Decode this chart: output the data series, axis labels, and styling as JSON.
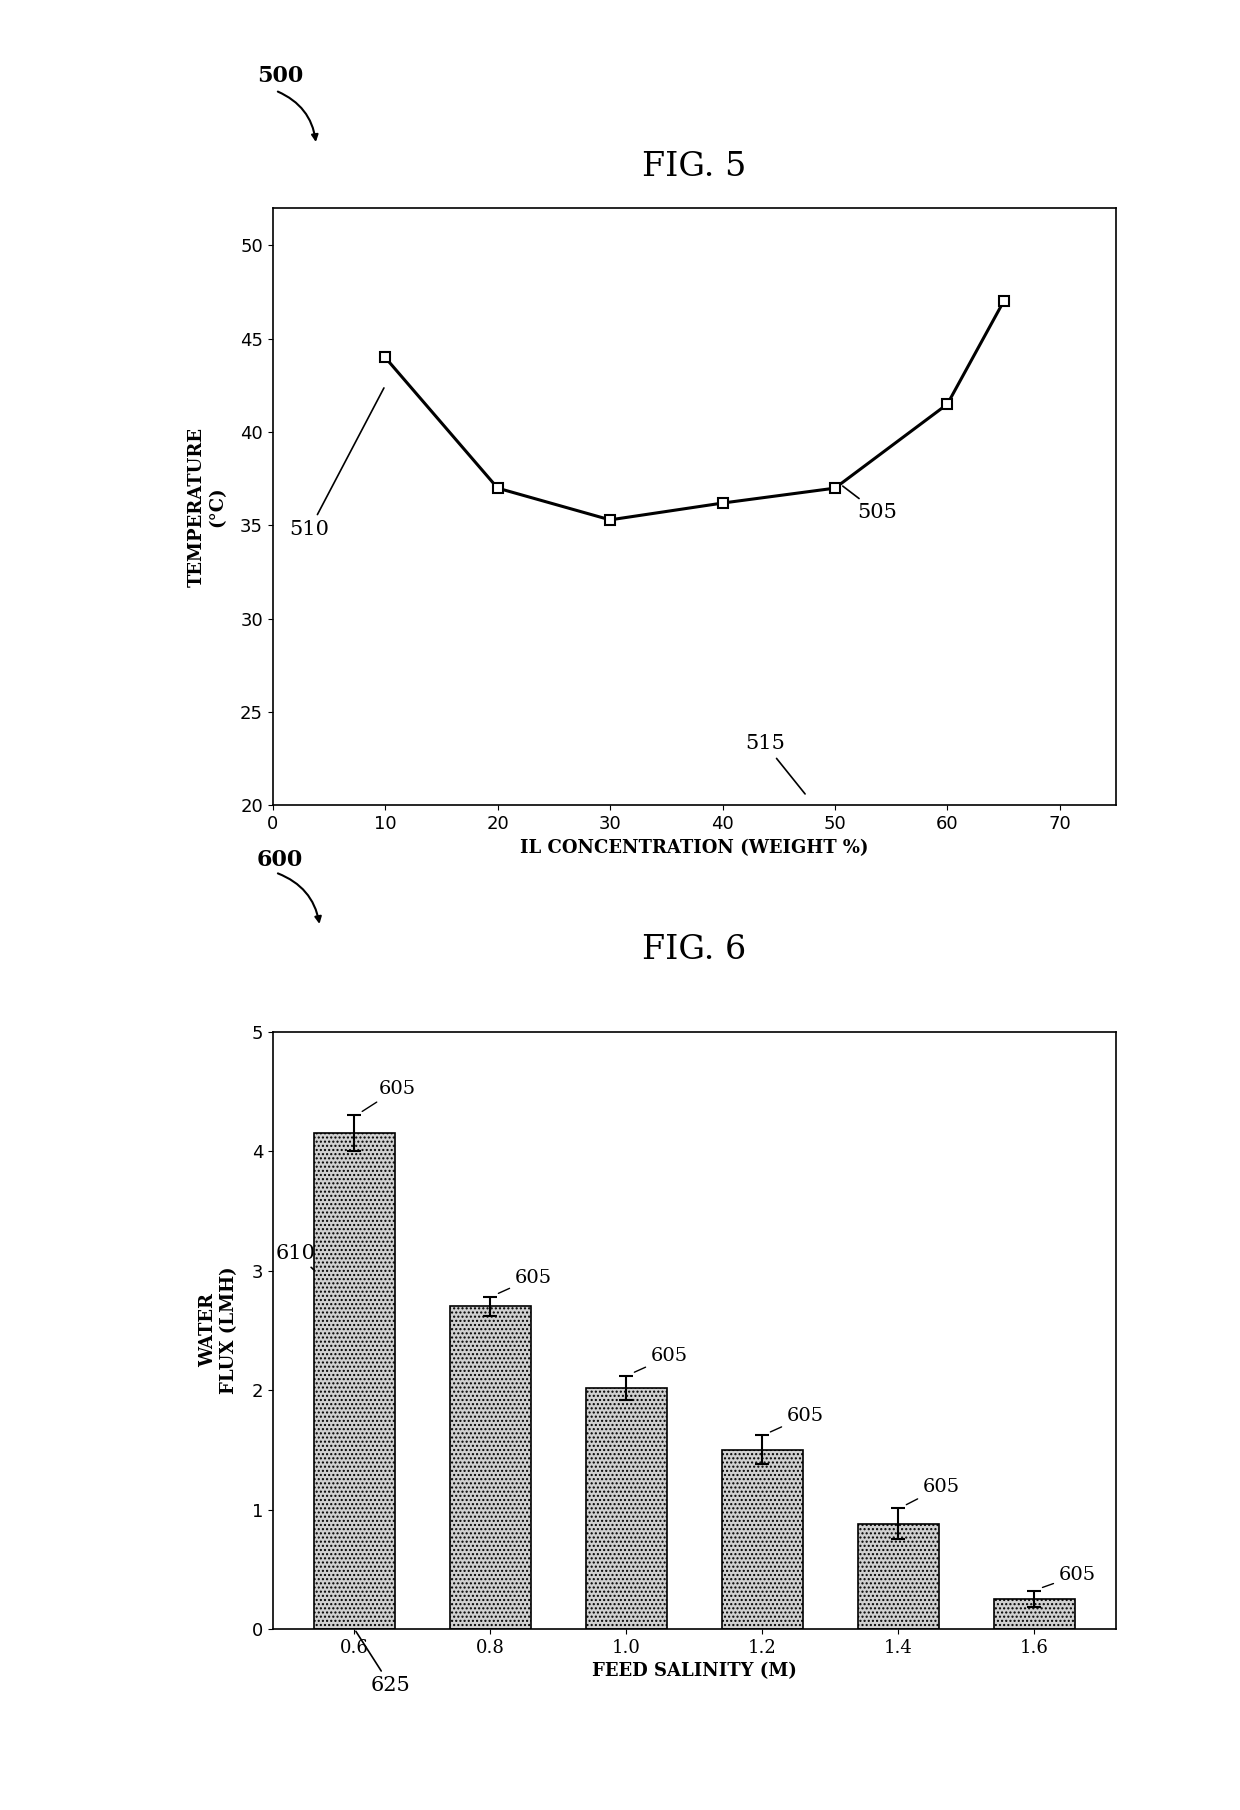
{
  "fig5": {
    "title": "FIG. 5",
    "xlabel": "IL CONCENTRATION (WEIGHT %)",
    "ylabel_line1": "TEMPERATURE",
    "ylabel_line2": "(°C)",
    "x": [
      10,
      20,
      30,
      40,
      50,
      60,
      65
    ],
    "y": [
      44.0,
      37.0,
      35.3,
      36.2,
      37.0,
      41.5,
      47.0
    ],
    "xlim": [
      0,
      75
    ],
    "ylim": [
      20,
      52
    ],
    "xticks": [
      0,
      10,
      20,
      30,
      40,
      50,
      60,
      70
    ],
    "yticks": [
      20,
      25,
      30,
      35,
      40,
      45,
      50
    ]
  },
  "fig6": {
    "title": "FIG. 6",
    "xlabel": "FEED SALINITY (M)",
    "ylabel_line1": "WATER",
    "ylabel_line2": "FLUX (LMH)",
    "categories": [
      "0.6",
      "0.8",
      "1.0",
      "1.2",
      "1.4",
      "1.6"
    ],
    "values": [
      4.15,
      2.7,
      2.02,
      1.5,
      0.88,
      0.25
    ],
    "errors": [
      0.15,
      0.08,
      0.1,
      0.12,
      0.13,
      0.07
    ],
    "ylim": [
      0,
      5
    ],
    "yticks": [
      0,
      1,
      2,
      3,
      4,
      5
    ]
  },
  "bg_color": "#ffffff",
  "line_color": "#000000",
  "bar_hatch": "....",
  "marker": "s",
  "marker_size": 7,
  "line_width": 2.2,
  "font_family": "serif",
  "title_fontsize": 24,
  "label_fontsize": 13,
  "tick_fontsize": 13,
  "annot_fontsize": 15,
  "ref_fontsize": 16
}
